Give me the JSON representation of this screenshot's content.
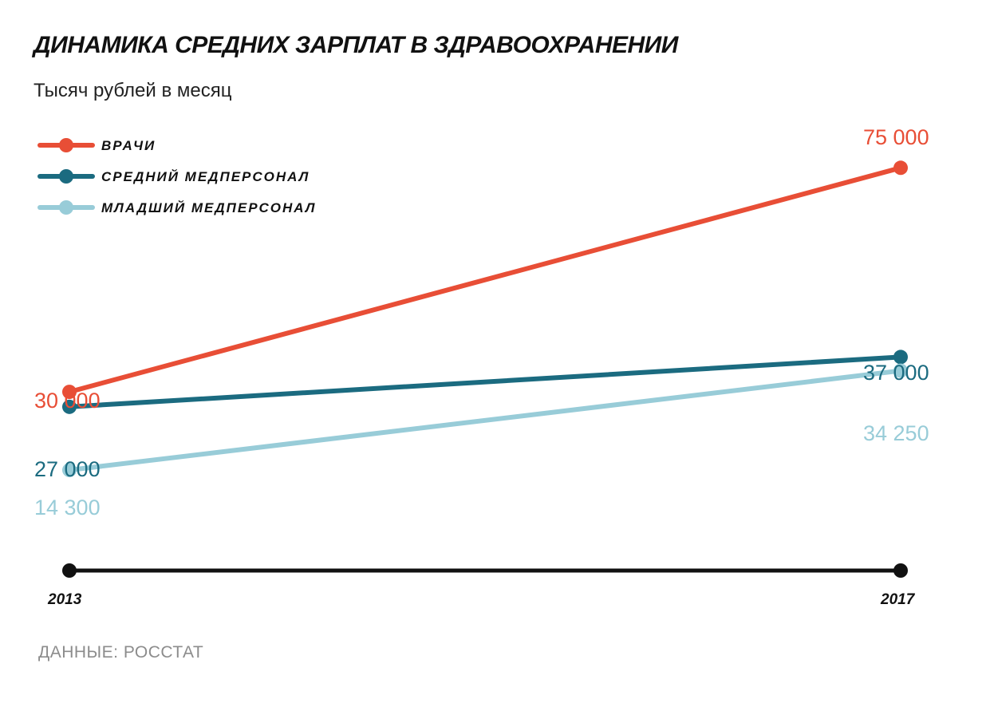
{
  "chart_data": {
    "type": "line",
    "title": "ДИНАМИКА СРЕДНИХ ЗАРПЛАТ В ЗДРАВООХРАНЕНИИ",
    "subtitle": "Тысяч рублей в месяц",
    "source": "ДАННЫЕ: РОССТАТ",
    "x": [
      "2013",
      "2017"
    ],
    "ylim": [
      0,
      75000
    ],
    "grid": false,
    "legend_position": "top-left",
    "series": [
      {
        "name": "ВРАЧИ",
        "color": "#e84e36",
        "values": [
          30000,
          75000
        ],
        "labels": [
          "30 000",
          "75 000"
        ]
      },
      {
        "name": "СРЕДНИЙ МЕДПЕРСОНАЛ",
        "color": "#1b6b80",
        "values": [
          27000,
          37000
        ],
        "labels": [
          "27 000",
          "37 000"
        ]
      },
      {
        "name": "МЛАДШИЙ МЕДПЕРСОНАЛ",
        "color": "#98ccd8",
        "values": [
          14300,
          34250
        ],
        "labels": [
          "14 300",
          "34 250"
        ]
      }
    ],
    "axis_color": "#111111"
  }
}
